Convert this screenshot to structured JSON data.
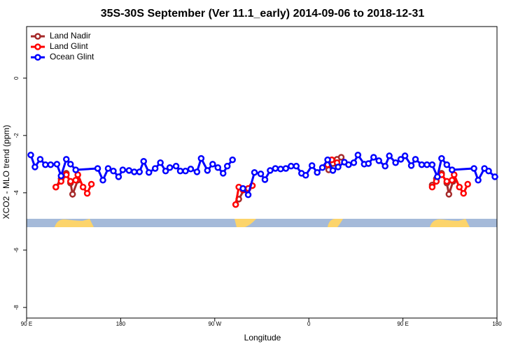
{
  "chart_data": {
    "type": "line",
    "title": "35S-30S September (Ver 11.1_early)   2014-09-06 to 2018-12-31",
    "xlabel": "Longitude",
    "ylabel": "XCO2 - MLO trend (ppm)",
    "xlim": [
      90,
      540
    ],
    "ylim": [
      -8.37,
      1.8
    ],
    "xticks": [
      {
        "value": 90,
        "label": "90 E"
      },
      180,
      {
        "value": 270,
        "label": "90 W"
      },
      {
        "value": 360,
        "label": "0"
      },
      {
        "value": 450,
        "label": "90 E"
      },
      {
        "value": 540,
        "label": "180"
      }
    ],
    "yticks": [
      0,
      -2,
      -4,
      -6,
      -8
    ],
    "legend": "top-left",
    "series": [
      {
        "name": "Land Nadir",
        "color": "#a52a2a",
        "x": [
          118,
          123,
          128,
          132,
          134,
          139,
          250,
          293,
          298,
          350,
          379,
          383,
          387,
          391,
          470,
          478,
          482,
          487,
          492,
          494,
          498
        ],
        "values": [
          -3.8,
          -3.51,
          -3.32,
          -3.66,
          -4.05,
          -3.56,
          null,
          -4.22,
          -3.9,
          null,
          -3.2,
          -2.98,
          -2.83,
          -2.76,
          null,
          -3.73,
          -3.51,
          -3.32,
          -3.66,
          -4.05,
          -3.6
        ]
      },
      {
        "name": "Land Glint",
        "color": "#ff0000",
        "x": [
          118,
          123,
          128,
          132,
          137,
          139,
          144,
          148,
          152,
          250,
          290,
          293,
          297,
          302,
          306,
          350,
          378,
          382,
          387,
          470,
          478,
          482,
          487,
          492,
          497,
          499,
          504,
          508,
          512
        ],
        "values": [
          -3.8,
          -3.6,
          -3.37,
          -3.6,
          -3.56,
          -3.37,
          -3.8,
          -4.02,
          -3.7,
          null,
          -4.41,
          -3.8,
          -3.9,
          -3.85,
          -3.75,
          null,
          -3.02,
          -2.85,
          -2.95,
          null,
          -3.8,
          -3.6,
          -3.37,
          -3.6,
          -3.56,
          -3.37,
          -3.8,
          -4.02,
          -3.7
        ]
      },
      {
        "name": "Ocean Glint",
        "color": "#0000ff",
        "x": [
          94,
          98,
          103,
          108,
          113,
          119,
          123,
          128,
          132,
          137,
          158,
          163,
          168,
          173,
          178,
          182,
          188,
          193,
          198,
          202,
          207,
          213,
          218,
          223,
          227,
          233,
          237,
          242,
          247,
          253,
          257,
          263,
          268,
          273,
          278,
          282,
          287,
          292,
          297,
          302,
          308,
          314,
          318,
          323,
          328,
          333,
          338,
          343,
          348,
          353,
          357,
          363,
          368,
          373,
          378,
          383,
          388,
          394,
          398,
          403,
          407,
          413,
          417,
          422,
          427,
          433,
          437,
          443,
          448,
          452,
          458,
          462,
          468,
          473,
          478,
          483,
          487,
          492,
          497,
          518,
          522,
          528,
          532,
          538
        ],
        "values": [
          -2.68,
          -3.1,
          -2.83,
          -3.02,
          -3.02,
          -3.0,
          -3.41,
          -2.83,
          -3.0,
          -3.2,
          -3.15,
          -3.56,
          -3.15,
          -3.24,
          -3.44,
          -3.2,
          -3.22,
          -3.27,
          -3.27,
          -2.9,
          -3.29,
          -3.15,
          -2.95,
          -3.24,
          -3.12,
          -3.07,
          -3.24,
          -3.24,
          -3.17,
          -3.27,
          -2.8,
          -3.22,
          -3.0,
          -3.12,
          -3.32,
          -3.07,
          -2.85,
          null,
          -3.85,
          -4.07,
          -3.29,
          -3.34,
          -3.54,
          -3.22,
          -3.15,
          -3.17,
          -3.15,
          -3.07,
          -3.07,
          -3.32,
          -3.39,
          -3.05,
          -3.29,
          -3.12,
          -2.85,
          -3.22,
          -3.1,
          -2.93,
          -3.02,
          -2.95,
          -2.68,
          -3.0,
          -2.98,
          -2.76,
          -2.88,
          -3.07,
          -2.71,
          -2.95,
          -2.83,
          -2.71,
          -3.05,
          -2.83,
          -3.02,
          -3.02,
          -3.02,
          -3.44,
          -2.8,
          -3.02,
          -3.2,
          -3.15,
          -3.56,
          -3.15,
          -3.24,
          -3.44
        ]
      }
    ]
  }
}
